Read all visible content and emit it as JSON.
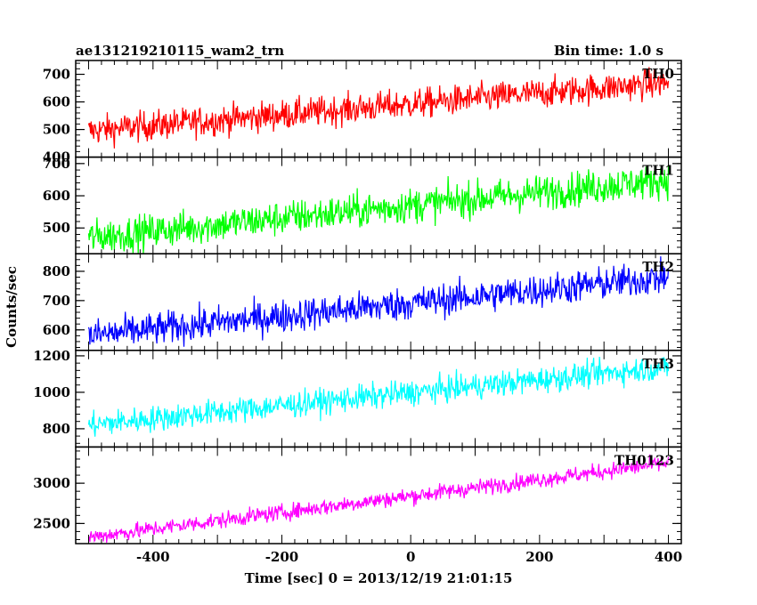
{
  "header": {
    "title": "ae131219210115_wam2_trn",
    "bin_time": "Bin time: 1.0 s"
  },
  "chart_data": {
    "type": "line",
    "xlabel": "Time [sec] 0 = 2013/12/19 21:01:15",
    "ylabel": "Counts/sec",
    "xlim": [
      -520,
      420
    ],
    "xticks": [
      -400,
      -200,
      0,
      200,
      400
    ],
    "x_range": [
      -500,
      400
    ],
    "grid": false,
    "panels": [
      {
        "name": "TH0",
        "color": "#ff0000",
        "ylim": [
          400,
          750
        ],
        "yticks": [
          400,
          500,
          600,
          700
        ],
        "start": 495,
        "end": 670,
        "noise": 27
      },
      {
        "name": "TH1",
        "color": "#00ff00",
        "ylim": [
          420,
          720
        ],
        "yticks": [
          500,
          600,
          700
        ],
        "start": 470,
        "end": 650,
        "noise": 27
      },
      {
        "name": "TH2",
        "color": "#0000ff",
        "ylim": [
          530,
          860
        ],
        "yticks": [
          600,
          700,
          800
        ],
        "start": 580,
        "end": 780,
        "noise": 28
      },
      {
        "name": "TH3",
        "color": "#00ffff",
        "ylim": [
          700,
          1230
        ],
        "yticks": [
          800,
          1000,
          1200
        ],
        "start": 820,
        "end": 1140,
        "noise": 35
      },
      {
        "name": "TH0123",
        "color": "#ff00ff",
        "ylim": [
          2250,
          3450
        ],
        "yticks": [
          2500,
          3000
        ],
        "start": 2330,
        "end": 3250,
        "noise": 50
      }
    ]
  }
}
